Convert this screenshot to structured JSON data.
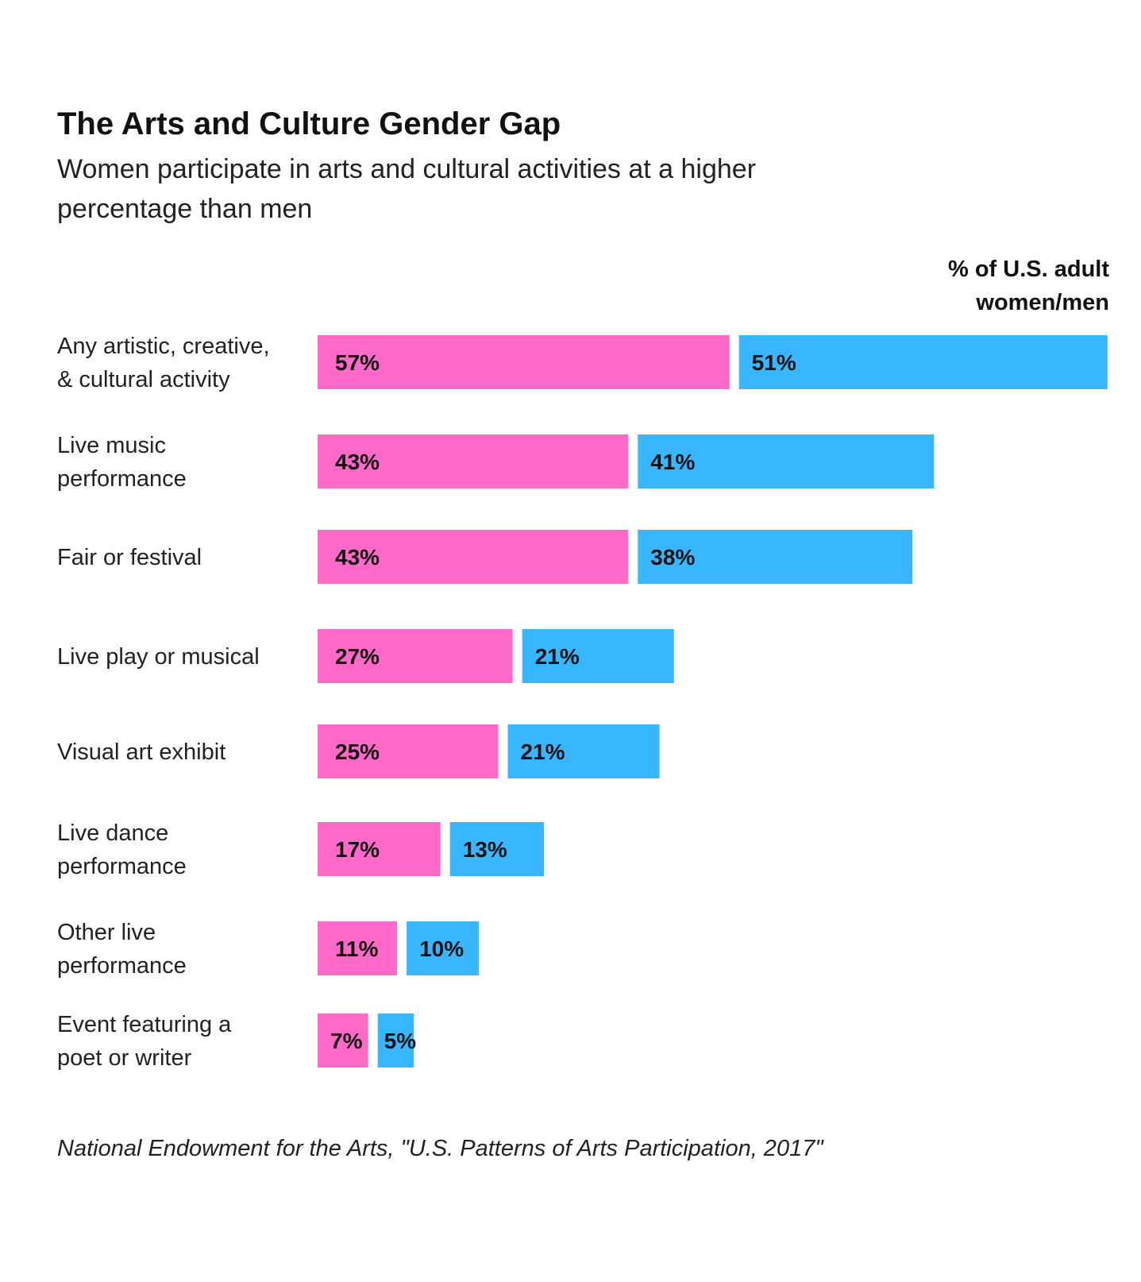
{
  "header": {
    "title": "The Arts and Culture Gender Gap",
    "subtitle": "Women participate in arts and cultural activities at a higher percentage than men"
  },
  "legend": {
    "unit_label": "% of U.S. adult women/men"
  },
  "footer": {
    "source": "National Endowment for the Arts, \"U.S. Patterns of Arts Participation, 2017\""
  },
  "colors": {
    "women": "#ff69c8",
    "men": "#38b6ff"
  },
  "chart_data": {
    "type": "bar",
    "orientation": "horizontal",
    "stacked": false,
    "title": "The Arts and Culture Gender Gap",
    "categories": [
      [
        "Any artistic, creative,",
        "& cultural activity"
      ],
      [
        "Live music",
        "performance"
      ],
      [
        "Fair or festival"
      ],
      [
        "Live play or musical"
      ],
      [
        "Visual art exhibit"
      ],
      [
        "Live dance",
        "performance"
      ],
      [
        "Other live",
        "performance"
      ],
      [
        "Event featuring a",
        "poet or writer"
      ]
    ],
    "series": [
      {
        "name": "Women",
        "values": [
          57,
          43,
          43,
          27,
          25,
          17,
          11,
          7
        ],
        "labels": [
          "57%",
          "43%",
          "43%",
          "27%",
          "25%",
          "17%",
          "11%",
          "7%"
        ]
      },
      {
        "name": "Men",
        "values": [
          51,
          41,
          38,
          21,
          21,
          13,
          10,
          5
        ],
        "labels": [
          "51%",
          "41%",
          "38%",
          "21%",
          "21%",
          "13%",
          "10%",
          "5%"
        ]
      }
    ],
    "xlabel": "% of U.S. adult women/men",
    "ylabel": "",
    "grid": false
  }
}
